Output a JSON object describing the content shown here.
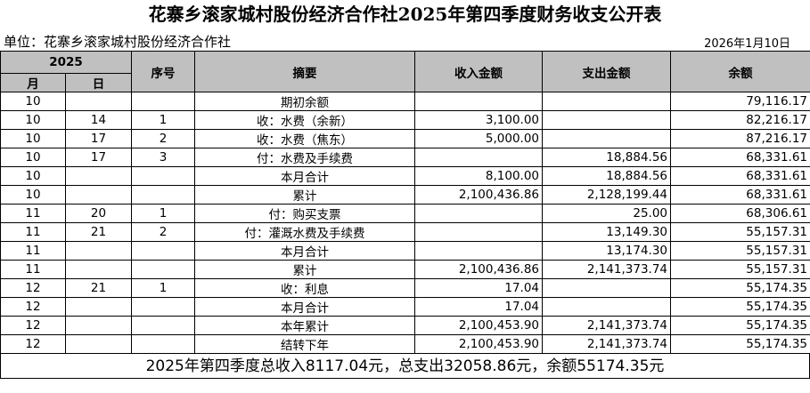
{
  "header": {
    "title": "花寨乡滚家城村股份经济合作社2025年第四季度财务收支公开表",
    "unit": "单位：花寨乡滚家城村股份经济合作社",
    "date": "2026年1月10日"
  },
  "table": {
    "year": "2025",
    "columns": [
      "月",
      "日",
      "序号",
      "摘要",
      "收入金额",
      "支出金额",
      "余额"
    ],
    "rows": [
      [
        "10",
        null,
        null,
        "期初余额",
        null,
        null,
        "79,116.17"
      ],
      [
        "10",
        "14",
        "1",
        "收：水费（余新）",
        "3,100.00",
        null,
        "82,216.17"
      ],
      [
        "10",
        "17",
        "2",
        "收：水费（焦东）",
        "5,000.00",
        null,
        "87,216.17"
      ],
      [
        "10",
        "17",
        "3",
        "付：水费及手续费",
        null,
        "18,884.56",
        "68,331.61"
      ],
      [
        "10",
        null,
        null,
        "本月合计",
        "8,100.00",
        "18,884.56",
        "68,331.61"
      ],
      [
        "10",
        null,
        null,
        "累计",
        "2,100,436.86",
        "2,128,199.44",
        "68,331.61"
      ],
      [
        "11",
        "20",
        "1",
        "付：购买支票",
        null,
        "25.00",
        "68,306.61"
      ],
      [
        "11",
        "21",
        "2",
        "付：灌溉水费及手续费",
        null,
        "13,149.30",
        "55,157.31"
      ],
      [
        "11",
        null,
        null,
        "本月合计",
        null,
        "13,174.30",
        "55,157.31"
      ],
      [
        "11",
        null,
        null,
        "累计",
        "2,100,436.86",
        "2,141,373.74",
        "55,157.31"
      ],
      [
        "12",
        "21",
        "1",
        "收：利息",
        "17.04",
        null,
        "55,174.35"
      ],
      [
        "12",
        null,
        null,
        "本月合计",
        "17.04",
        null,
        "55,174.35"
      ],
      [
        "12",
        null,
        null,
        "本年累计",
        "2,100,453.90",
        "2,141,373.74",
        "55,174.35"
      ],
      [
        "12",
        null,
        null,
        "结转下年",
        "2,100,453.90",
        "2,141,373.74",
        "55,174.35"
      ]
    ]
  },
  "footer": "2025年第四季度总收入8117.04元，总支出32058.86元，余额55174.35元"
}
